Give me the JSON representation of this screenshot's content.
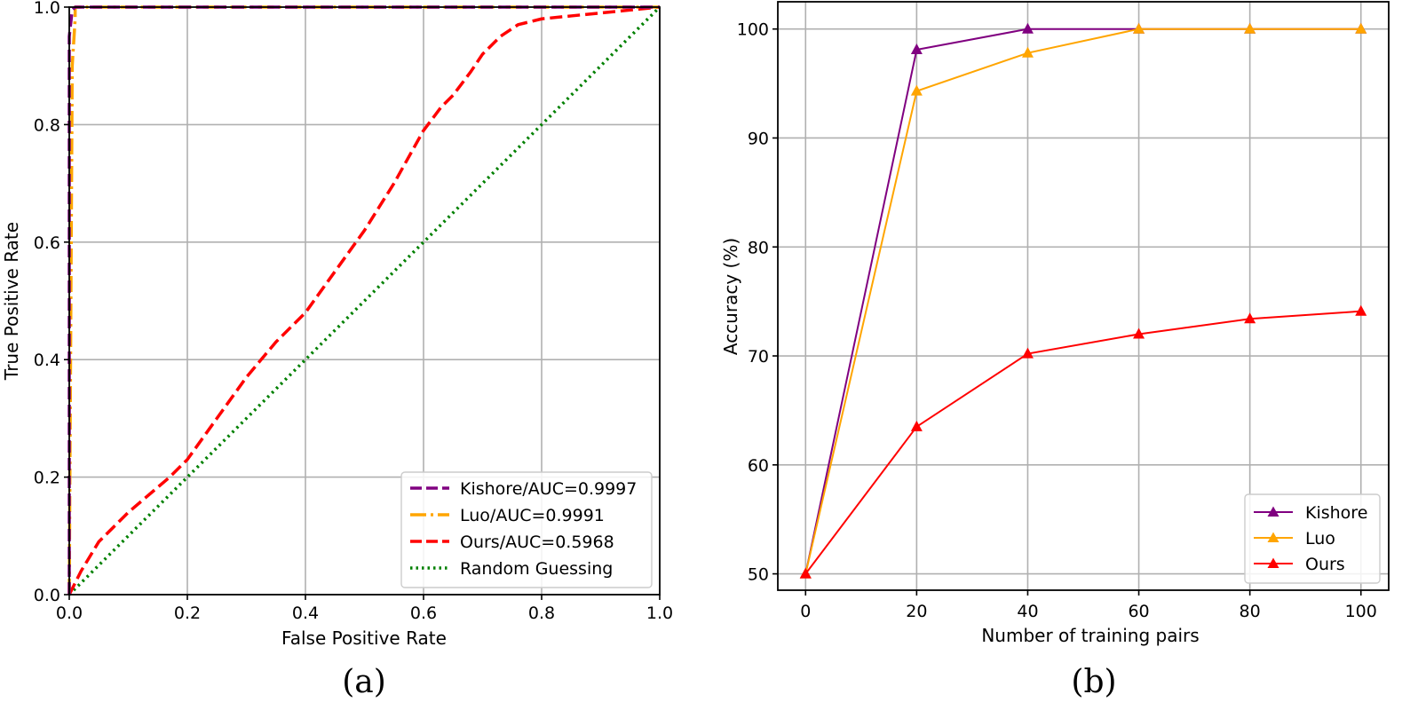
{
  "chart_data": [
    {
      "type": "line",
      "panel_label": "(a)",
      "xlabel": "False Positive Rate",
      "ylabel": "True Positive Rate",
      "xlim": [
        0.0,
        1.0
      ],
      "ylim": [
        0.0,
        1.0
      ],
      "xticks": [
        "0.0",
        "0.2",
        "0.4",
        "0.6",
        "0.8",
        "1.0"
      ],
      "yticks": [
        "0.0",
        "0.2",
        "0.4",
        "0.6",
        "0.8",
        "1.0"
      ],
      "grid": true,
      "legend_position": "lower-right",
      "series": [
        {
          "name": "Kishore/AUC=0.9997",
          "color": "#800080",
          "dash": "dashed",
          "x": [
            0.0,
            0.0,
            0.005,
            0.01,
            1.0
          ],
          "y": [
            0.0,
            0.95,
            0.995,
            1.0,
            1.0
          ]
        },
        {
          "name": "Luo/AUC=0.9991",
          "color": "#FFA500",
          "dash": "dashdot",
          "x": [
            0.0,
            0.005,
            0.01,
            0.01,
            1.0
          ],
          "y": [
            0.0,
            0.9,
            0.98,
            1.0,
            1.0
          ]
        },
        {
          "name": "Ours/AUC=0.5968",
          "color": "#FF0000",
          "dash": "dashed",
          "x": [
            0.0,
            0.02,
            0.05,
            0.1,
            0.17,
            0.2,
            0.25,
            0.3,
            0.35,
            0.4,
            0.45,
            0.5,
            0.55,
            0.6,
            0.63,
            0.65,
            0.68,
            0.7,
            0.73,
            0.76,
            0.8,
            0.85,
            0.9,
            0.95,
            1.0
          ],
          "y": [
            0.0,
            0.04,
            0.09,
            0.14,
            0.2,
            0.23,
            0.3,
            0.37,
            0.43,
            0.48,
            0.55,
            0.62,
            0.7,
            0.79,
            0.83,
            0.85,
            0.89,
            0.92,
            0.95,
            0.97,
            0.98,
            0.985,
            0.99,
            0.995,
            1.0
          ]
        },
        {
          "name": "Random Guessing",
          "color": "#008000",
          "dash": "dotted",
          "x": [
            0.0,
            1.0
          ],
          "y": [
            0.0,
            1.0
          ]
        }
      ]
    },
    {
      "type": "line",
      "panel_label": "(b)",
      "xlabel": "Number of training pairs",
      "ylabel": "Accuracy (%)",
      "xlim": [
        -5,
        105
      ],
      "ylim": [
        48.5,
        102.5
      ],
      "x": [
        0,
        20,
        40,
        60,
        80,
        100
      ],
      "xticks": [
        "0",
        "20",
        "40",
        "60",
        "80",
        "100"
      ],
      "ytick_values": [
        50,
        60,
        70,
        80,
        90,
        100
      ],
      "yticks": [
        "50",
        "60",
        "70",
        "80",
        "90",
        "100"
      ],
      "grid": true,
      "legend_position": "lower-right",
      "marker": "triangle",
      "series": [
        {
          "name": "Kishore",
          "color": "#800080",
          "values": [
            50,
            98.1,
            100,
            100,
            100,
            100
          ]
        },
        {
          "name": "Luo",
          "color": "#FFA500",
          "values": [
            50,
            94.3,
            97.8,
            100,
            100,
            100
          ]
        },
        {
          "name": "Ours",
          "color": "#FF0000",
          "values": [
            50,
            63.5,
            70.2,
            72.0,
            73.4,
            74.1
          ]
        }
      ]
    }
  ]
}
